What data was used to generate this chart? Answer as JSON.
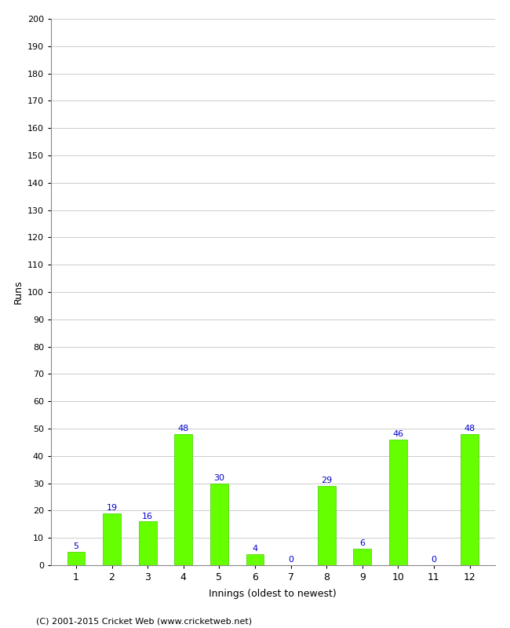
{
  "xlabel": "Innings (oldest to newest)",
  "ylabel": "Runs",
  "categories": [
    1,
    2,
    3,
    4,
    5,
    6,
    7,
    8,
    9,
    10,
    11,
    12
  ],
  "values": [
    5,
    19,
    16,
    48,
    30,
    4,
    0,
    29,
    6,
    46,
    0,
    48
  ],
  "bar_color": "#66ff00",
  "bar_edge_color": "#44cc00",
  "label_color": "#0000cc",
  "ylim": [
    0,
    200
  ],
  "ytick_step": 10,
  "background_color": "#ffffff",
  "grid_color": "#cccccc",
  "footer_text": "(C) 2001-2015 Cricket Web (www.cricketweb.net)"
}
